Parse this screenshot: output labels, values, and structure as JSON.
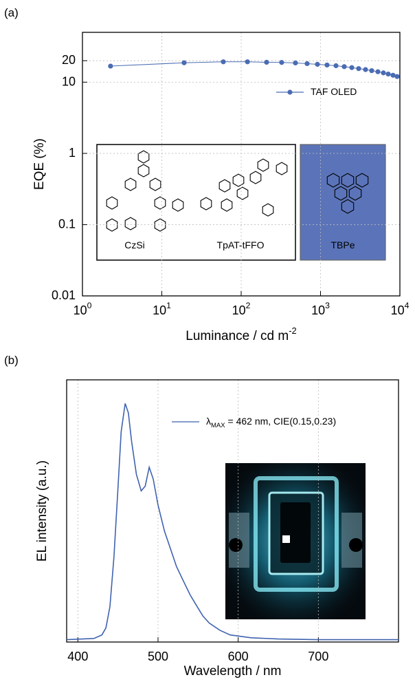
{
  "chart_data": [
    {
      "type": "line",
      "label": "(a)",
      "xlabel": "Luminance / cd m^{-2}",
      "ylabel": "EQE (%)",
      "xscale": "log",
      "yscale": "log",
      "xlim": [
        1,
        10000
      ],
      "ylim": [
        0.01,
        50
      ],
      "xticks": [
        {
          "value": 1,
          "label": "10^{0}"
        },
        {
          "value": 10,
          "label": "10^{1}"
        },
        {
          "value": 100,
          "label": "10^{2}"
        },
        {
          "value": 1000,
          "label": "10^{3}"
        },
        {
          "value": 10000,
          "label": "10^{4}"
        }
      ],
      "yticks": [
        0.01,
        0.1,
        1,
        10,
        20
      ],
      "grid": true,
      "legend": "upper right",
      "series": [
        {
          "name": "TAF OLED",
          "color": "#4a6cb3",
          "marker": "o",
          "x": [
            2.26,
            19.1,
            59.6,
            120,
            209,
            324,
            483,
            678,
            914,
            1208,
            1566,
            1990,
            2477,
            3025,
            3690,
            4415,
            5284,
            6197,
            7129,
            8189,
            9230
          ],
          "values": [
            16.8,
            18.7,
            19.3,
            19.3,
            19.0,
            18.9,
            18.6,
            18.2,
            17.8,
            17.4,
            17.0,
            16.5,
            16.0,
            15.5,
            15.0,
            14.5,
            14.0,
            13.5,
            13.0,
            12.5,
            12.0
          ]
        }
      ],
      "annotations": [
        "CzSi",
        "TpAT-tFFO",
        "TBPe"
      ]
    },
    {
      "type": "line",
      "label": "(b)",
      "xlabel": "Wavelength / nm",
      "ylabel": "EL intensity (a.u.)",
      "xlim": [
        386,
        800
      ],
      "ylim": [
        -0.01,
        1.1
      ],
      "xticks": [
        400,
        500,
        600,
        700
      ],
      "grid": true,
      "legend": "upper right",
      "series": [
        {
          "name": "λ_{MAX} = 462 nm, CIE(0.15,0.23)",
          "color": "#3f62ae",
          "x": [
            386,
            420,
            430,
            435,
            440,
            445,
            450,
            454,
            459,
            463,
            467,
            473,
            479,
            484,
            489,
            494,
            500,
            508,
            516,
            523,
            530,
            540,
            547,
            556,
            564,
            577,
            590,
            616,
            650,
            700,
            750,
            800
          ],
          "values": [
            0,
            0.005,
            0.02,
            0.05,
            0.14,
            0.35,
            0.64,
            0.88,
            1.0,
            0.96,
            0.84,
            0.7,
            0.63,
            0.65,
            0.73,
            0.68,
            0.57,
            0.46,
            0.38,
            0.31,
            0.26,
            0.19,
            0.15,
            0.1,
            0.07,
            0.04,
            0.02,
            0.008,
            0.003,
            0,
            0,
            0
          ]
        }
      ]
    }
  ]
}
